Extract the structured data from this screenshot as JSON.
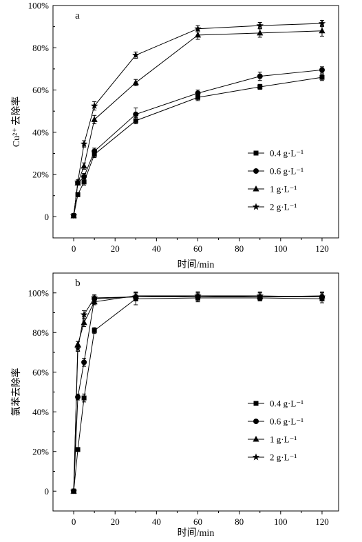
{
  "chart_data": [
    {
      "type": "line",
      "panel_label": "a",
      "xlabel": "时间/min",
      "ylabel": "Cu²⁺ 去除率",
      "xlim": [
        -10,
        128
      ],
      "ylim": [
        -10,
        100
      ],
      "x_ticks": [
        0,
        20,
        40,
        60,
        80,
        100,
        120
      ],
      "y_ticks": [
        {
          "value": 0,
          "label": "0"
        },
        {
          "value": 20,
          "label": "20%"
        },
        {
          "value": 40,
          "label": "40%"
        },
        {
          "value": 60,
          "label": "60%"
        },
        {
          "value": 80,
          "label": "80%"
        },
        {
          "value": 100,
          "label": "100%"
        }
      ],
      "legend_position": "right",
      "x": [
        0,
        2,
        5,
        10,
        30,
        60,
        90,
        120
      ],
      "series": [
        {
          "name": "0.4 g·L⁻¹",
          "marker": "square",
          "values": [
            0.5,
            10.5,
            16.5,
            29.5,
            45.5,
            56.5,
            61.5,
            66
          ],
          "errors": [
            1,
            1,
            1.5,
            1.5,
            1.5,
            1.5,
            1.2,
            1.5
          ]
        },
        {
          "name": "0.6 g·L⁻¹",
          "marker": "circle",
          "values": [
            0.5,
            16,
            19,
            31,
            48.5,
            58.5,
            66.5,
            69.5
          ],
          "errors": [
            1,
            1,
            1.5,
            1.5,
            3,
            1.5,
            2,
            1.5
          ]
        },
        {
          "name": "1 g·L⁻¹",
          "marker": "triangle",
          "values": [
            0.5,
            16,
            24,
            46,
            63.5,
            86,
            87,
            88
          ],
          "errors": [
            1,
            1,
            1.5,
            2,
            1.5,
            2,
            2,
            2.5
          ]
        },
        {
          "name": "2 g·L⁻¹",
          "marker": "star",
          "values": [
            0.5,
            16.5,
            34.5,
            52.5,
            76.5,
            89,
            90.5,
            91.5
          ],
          "errors": [
            1,
            1,
            1.5,
            2,
            1.5,
            1.5,
            1.5,
            1.5
          ]
        }
      ]
    },
    {
      "type": "line",
      "panel_label": "b",
      "xlabel": "时间/min",
      "ylabel": "氯苯去除率",
      "xlim": [
        -10,
        128
      ],
      "ylim": [
        -10,
        110
      ],
      "x_ticks": [
        0,
        20,
        40,
        60,
        80,
        100,
        120
      ],
      "y_ticks": [
        {
          "value": 0,
          "label": "0"
        },
        {
          "value": 20,
          "label": "20%"
        },
        {
          "value": 40,
          "label": "40%"
        },
        {
          "value": 60,
          "label": "60%"
        },
        {
          "value": 80,
          "label": "80%"
        },
        {
          "value": 100,
          "label": "100%"
        }
      ],
      "legend_position": "right",
      "x": [
        0,
        2,
        5,
        10,
        30,
        60,
        90,
        120
      ],
      "series": [
        {
          "name": "0.4 g·L⁻¹",
          "marker": "square",
          "values": [
            0,
            21,
            47,
            81,
            97,
            97.5,
            97.5,
            97
          ],
          "errors": [
            1,
            1,
            2,
            1.5,
            3,
            2,
            1.5,
            2
          ]
        },
        {
          "name": "0.6 g·L⁻¹",
          "marker": "circle",
          "values": [
            0,
            47.5,
            65,
            97,
            98,
            98,
            98,
            98
          ],
          "errors": [
            1,
            1.5,
            2,
            1.5,
            2,
            2,
            2,
            2
          ]
        },
        {
          "name": "1 g·L⁻¹",
          "marker": "triangle",
          "values": [
            0,
            74,
            85,
            95.5,
            98.5,
            98.5,
            98,
            98.5
          ],
          "errors": [
            1,
            1.5,
            2,
            1.5,
            2,
            2,
            2,
            2
          ]
        },
        {
          "name": "2 g·L⁻¹",
          "marker": "star",
          "values": [
            0,
            72,
            89,
            97.5,
            98,
            98.5,
            98.5,
            98
          ],
          "errors": [
            1,
            1.5,
            2,
            1.5,
            2,
            2,
            2,
            2
          ]
        }
      ]
    }
  ]
}
